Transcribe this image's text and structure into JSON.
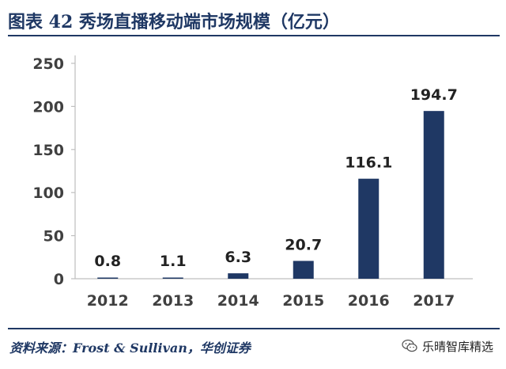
{
  "figure": {
    "title": "图表 42    秀场直播移动端市场规模（亿元）",
    "source": "资料来源：Frost & Sullivan，华创证券",
    "watermark": "乐晴智库精选"
  },
  "colors": {
    "bar": "#1f3864",
    "axis": "#bfbfbf",
    "text": "#404040",
    "label": "#222222"
  },
  "chart_data": {
    "type": "bar",
    "title": "秀场直播移动端市场规模（亿元）",
    "categories": [
      "2012",
      "2013",
      "2014",
      "2015",
      "2016",
      "2017"
    ],
    "values": [
      0.8,
      1.1,
      6.3,
      20.7,
      116.1,
      194.7
    ],
    "value_labels": [
      "0.8",
      "1.1",
      "6.3",
      "20.7",
      "116.1",
      "194.7"
    ],
    "y_ticks": [
      "0",
      "50",
      "100",
      "150",
      "200",
      "250"
    ],
    "ylim": [
      0,
      250
    ],
    "xlabel": "",
    "ylabel": "",
    "grid": false,
    "legend": "none"
  }
}
